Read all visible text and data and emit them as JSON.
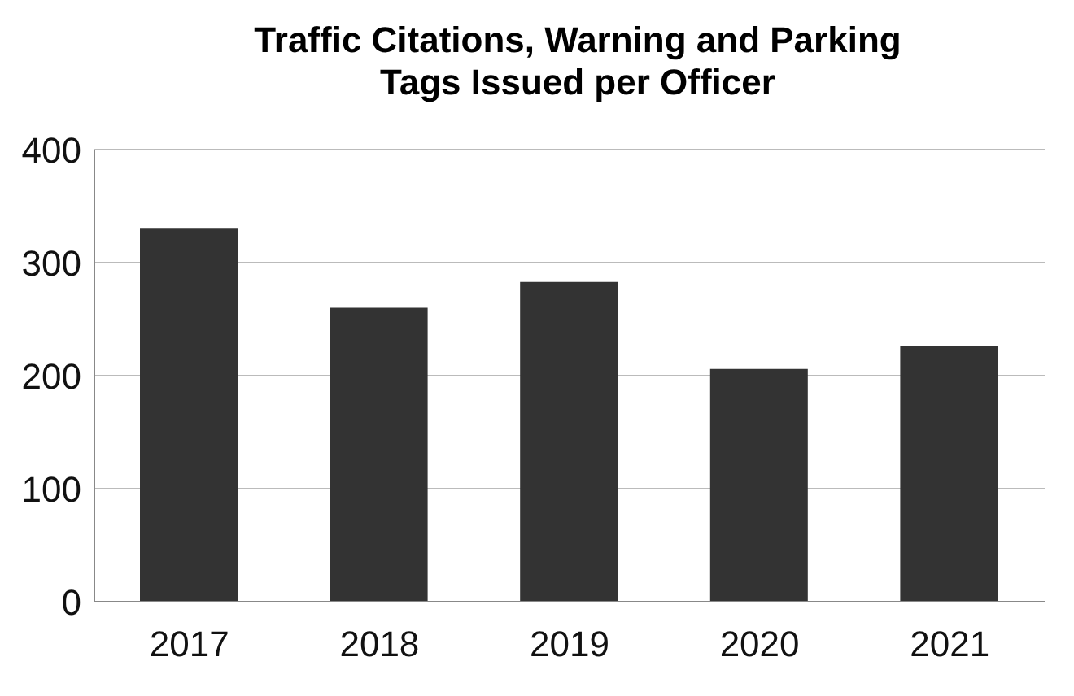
{
  "chart_data": {
    "type": "bar",
    "title": "Traffic Citations, Warning and Parking\nTags Issued per Officer",
    "categories": [
      "2017",
      "2018",
      "2019",
      "2020",
      "2021"
    ],
    "values": [
      330,
      260,
      283,
      206,
      226
    ],
    "color": "#333333",
    "ylim": [
      0,
      400
    ],
    "yticks": [
      0,
      100,
      200,
      300,
      400
    ],
    "grid": "y"
  }
}
